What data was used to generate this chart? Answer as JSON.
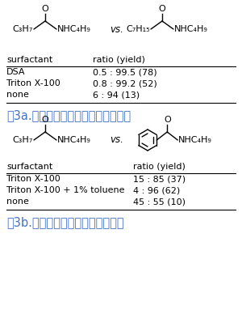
{
  "fig3a_caption": "嘦3a.　酥酸塩とオクタン酸塩の競合",
  "fig3b_caption": "嘦3b.　酥酸塩と安息香酸塩の競合",
  "table3a_header": [
    "surfactant",
    "ratio (yield)"
  ],
  "table3a_rows": [
    [
      "DSA",
      "0.5 : 99.5 (78)"
    ],
    [
      "Triton X-100",
      "0.8 : 99.2 (52)"
    ],
    [
      "none",
      "6 : 94 (13)"
    ]
  ],
  "table3b_header": [
    "surfactant",
    "ratio (yield)"
  ],
  "table3b_rows": [
    [
      "Triton X-100",
      "15 : 85 (37)"
    ],
    [
      "Triton X-100 + 1% toluene",
      "4 : 96 (62)"
    ],
    [
      "none",
      "45 : 55 (10)"
    ]
  ],
  "caption_color": "#4472C4",
  "background_color": "#ffffff",
  "text_color": "#000000",
  "font_size_caption": 10.5,
  "font_size_table": 8.0,
  "font_size_mol": 8.0
}
